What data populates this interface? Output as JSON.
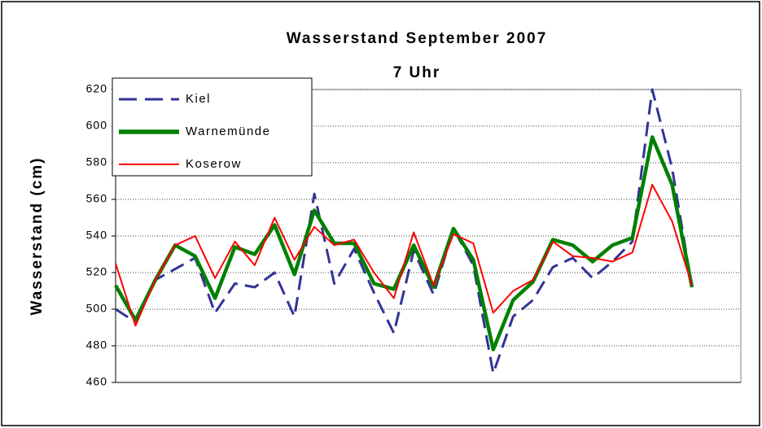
{
  "chart_data": {
    "type": "line",
    "title": "Wasserstand September 2007",
    "subtitle": "7 Uhr",
    "y_label": "Wasserstand (cm)",
    "categories": [
      null,
      null,
      null,
      null,
      null,
      null,
      null,
      null,
      null,
      null,
      null,
      null,
      null,
      null,
      null,
      null,
      null,
      null,
      null,
      null,
      null,
      null,
      null,
      null,
      null,
      null,
      null,
      null,
      null,
      null
    ],
    "ylim": [
      460,
      620
    ],
    "yticks": [
      460,
      480,
      500,
      520,
      540,
      560,
      580,
      600,
      620
    ],
    "grid": true,
    "legend": "top-left",
    "series": [
      {
        "name": "Kiel",
        "color": "#333399",
        "dashed": true,
        "values": [
          500,
          493,
          516,
          522,
          528,
          498,
          514,
          512,
          520,
          496,
          563,
          514,
          533,
          509,
          487,
          532,
          508,
          544,
          524,
          465,
          496,
          505,
          523,
          528,
          517,
          526,
          537,
          620,
          577,
          512
        ]
      },
      {
        "name": "Warnemünde",
        "color": "#008000",
        "values": [
          513,
          494,
          516,
          535,
          529,
          506,
          534,
          530,
          546,
          519,
          554,
          536,
          536,
          514,
          511,
          535,
          512,
          544,
          527,
          478,
          505,
          515,
          538,
          535,
          526,
          535,
          539,
          594,
          568,
          512
        ]
      },
      {
        "name": "Koserow",
        "color": "#ff0000",
        "values": [
          525,
          491,
          516,
          535,
          540,
          517,
          537,
          524,
          550,
          527,
          545,
          535,
          538,
          520,
          506,
          542,
          513,
          541,
          536,
          498,
          510,
          516,
          537,
          529,
          528,
          526,
          531,
          568,
          548,
          513
        ]
      }
    ]
  }
}
